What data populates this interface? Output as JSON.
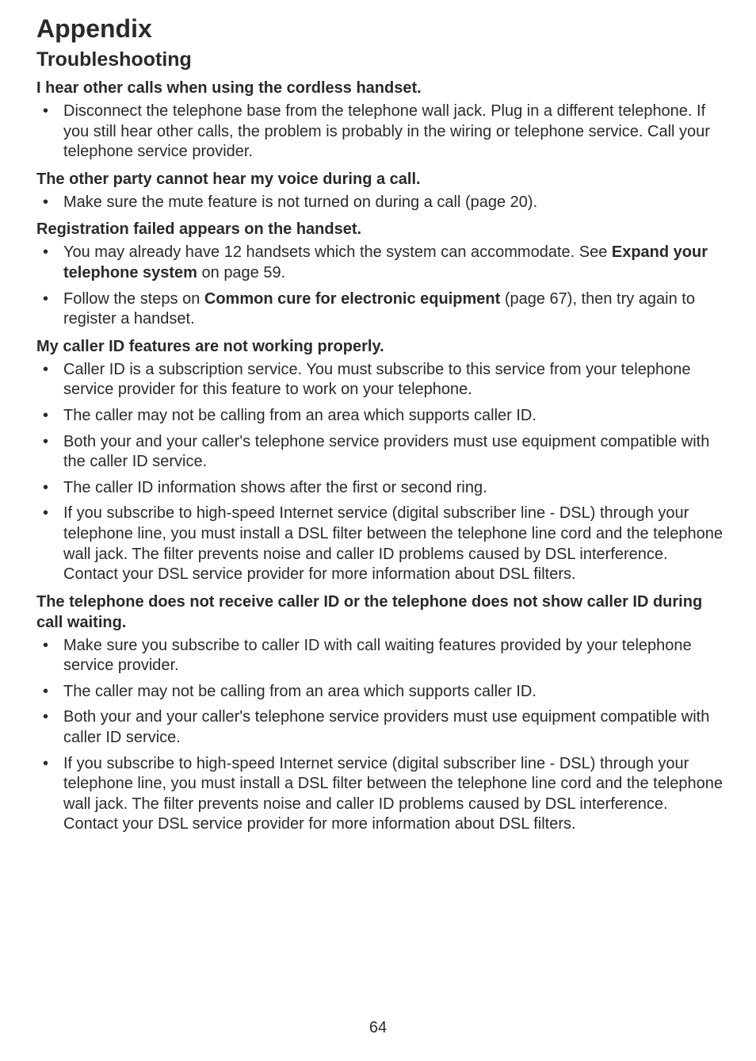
{
  "typography": {
    "h1_fontsize": 32,
    "h2_fontsize": 25,
    "h3_fontsize": 20,
    "body_fontsize": 20,
    "text_color": "#2a2a2a",
    "background_color": "#ffffff",
    "font_family": "Arial, Helvetica, sans-serif",
    "body_line_height": 1.28
  },
  "page_number": "64",
  "title": "Appendix",
  "subtitle": "Troubleshooting",
  "sections": {
    "s1": {
      "heading": "I hear other calls when using the cordless handset.",
      "b1": "Disconnect the telephone base from the telephone wall jack. Plug in a different telephone. If you still hear other calls, the problem is probably in the wiring or telephone service. Call your telephone service provider."
    },
    "s2": {
      "heading": "The other party cannot hear my voice during a call.",
      "b1": "Make sure the mute feature is not turned on during a call (page 20)."
    },
    "s3": {
      "heading": "Registration failed appears on the handset.",
      "b1_pre": "You may already have 12 handsets which the system can accommodate. See ",
      "b1_bold": "Expand your telephone system",
      "b1_post": " on page 59.",
      "b2_pre": "Follow the steps on ",
      "b2_bold": "Common cure for electronic equipment",
      "b2_post": " (page 67), then try again to register a handset."
    },
    "s4": {
      "heading": "My caller ID features are not working properly.",
      "b1": "Caller ID is a subscription service. You must subscribe to this service from your telephone service provider for this feature to work on your telephone.",
      "b2": "The caller may not be calling from an area which supports caller ID.",
      "b3": "Both your and your caller's telephone service providers must use equipment compatible with the caller ID service.",
      "b4": "The caller ID information shows after the first or second ring.",
      "b5": "If you subscribe to high-speed Internet service (digital subscriber line - DSL) through your telephone line, you must install a DSL filter between the telephone line cord and the telephone wall jack. The filter prevents noise and caller ID problems caused by DSL interference. Contact your DSL service provider for more information about DSL filters."
    },
    "s5": {
      "heading": "The telephone does not receive caller ID or the telephone does not show caller ID during call waiting.",
      "b1": "Make sure you subscribe to caller ID with call waiting features provided by your telephone service provider.",
      "b2": "The caller may not be calling from an area which supports caller ID.",
      "b3": "Both your and your caller's telephone service providers must use equipment compatible with caller ID service.",
      "b4": "If you subscribe to high-speed Internet service (digital subscriber line - DSL) through your telephone line, you must install a DSL filter between the telephone line cord and the telephone wall jack. The filter prevents noise and caller ID problems caused by DSL interference. Contact your DSL service provider for more information about DSL filters."
    }
  }
}
